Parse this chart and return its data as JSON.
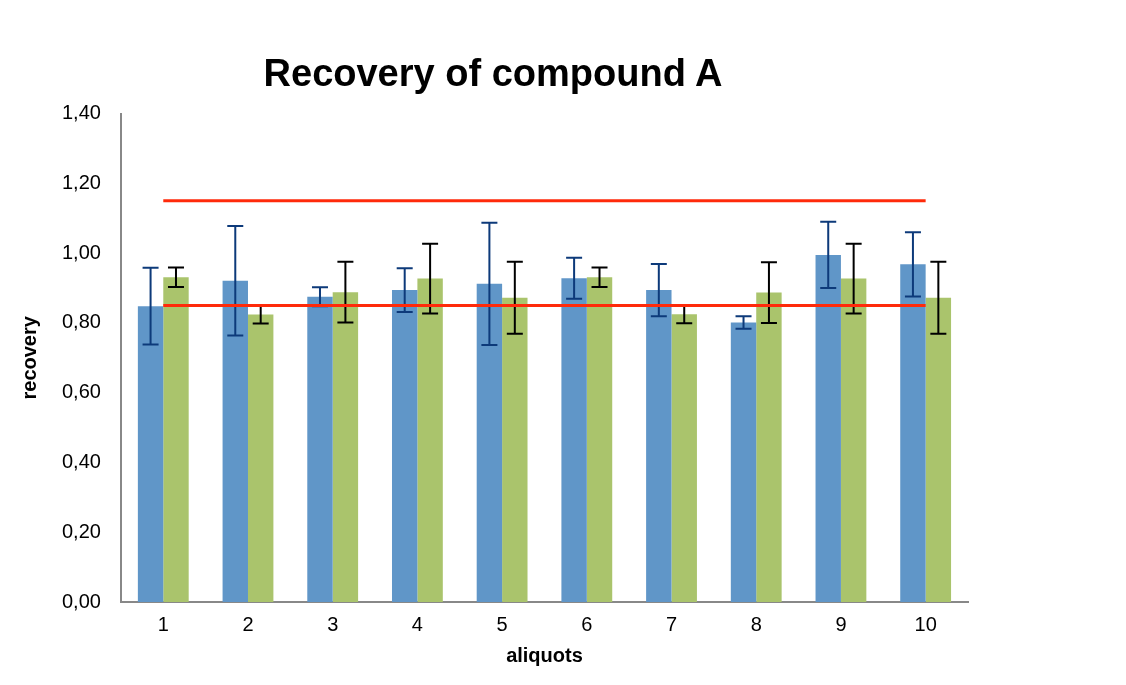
{
  "chart_data": {
    "type": "bar",
    "title": "Recovery of compound A",
    "xlabel": "aliquots",
    "ylabel": "recovery",
    "categories": [
      "1",
      "2",
      "3",
      "4",
      "5",
      "6",
      "7",
      "8",
      "9",
      "10"
    ],
    "series": [
      {
        "color": "#6096c8",
        "values": [
          0.848,
          0.921,
          0.875,
          0.894,
          0.912,
          0.928,
          0.894,
          0.801,
          0.995,
          0.968
        ],
        "errors": [
          0.11,
          0.157,
          0.027,
          0.063,
          0.175,
          0.059,
          0.075,
          0.018,
          0.095,
          0.092
        ]
      },
      {
        "color": "#aac46c",
        "values": [
          0.931,
          0.824,
          0.888,
          0.927,
          0.872,
          0.931,
          0.825,
          0.887,
          0.927,
          0.872
        ],
        "errors": [
          0.028,
          0.026,
          0.087,
          0.1,
          0.103,
          0.028,
          0.026,
          0.087,
          0.1,
          0.103
        ]
      }
    ],
    "ylim": [
      0,
      1.4
    ],
    "yticks": [
      {
        "value": 0,
        "label": "0,00"
      },
      {
        "value": 0.2,
        "label": "0,20"
      },
      {
        "value": 0.4,
        "label": "0,40"
      },
      {
        "value": 0.6,
        "label": "0,60"
      },
      {
        "value": 0.8,
        "label": "0,80"
      },
      {
        "value": 1,
        "label": "1,00"
      },
      {
        "value": 1.2,
        "label": "1,20"
      },
      {
        "value": 1.4,
        "label": "1,40"
      }
    ],
    "ref_lines": [
      {
        "axis": "y",
        "value": 1.15,
        "color": "#ff2a0a"
      },
      {
        "axis": "y",
        "value": 0.85,
        "color": "#ff2a0a"
      }
    ],
    "grid": false,
    "legend": false
  }
}
